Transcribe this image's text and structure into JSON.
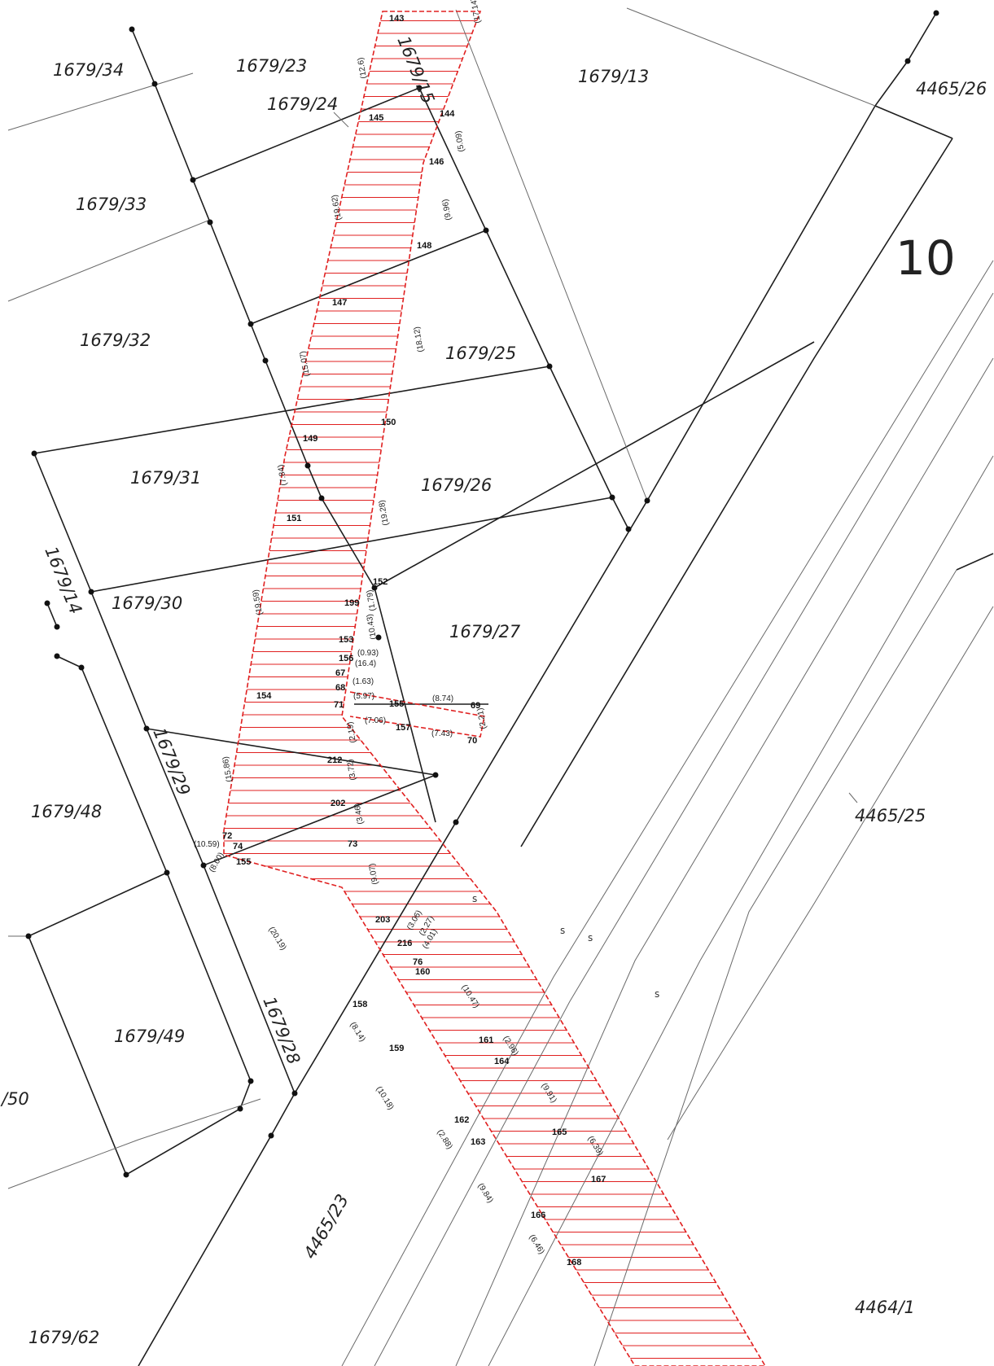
{
  "sheet_number": "10",
  "parcels": [
    {
      "id": "p-1679-34",
      "text": "1679/34"
    },
    {
      "id": "p-1679-23",
      "text": "1679/23"
    },
    {
      "id": "p-1679-24",
      "text": "1679/24"
    },
    {
      "id": "p-1679-15",
      "text": "1679/15"
    },
    {
      "id": "p-1679-13",
      "text": "1679/13"
    },
    {
      "id": "p-4465-26",
      "text": "4465/26"
    },
    {
      "id": "p-1679-33",
      "text": "1679/33"
    },
    {
      "id": "p-1679-32",
      "text": "1679/32"
    },
    {
      "id": "p-1679-25",
      "text": "1679/25"
    },
    {
      "id": "p-1679-31",
      "text": "1679/31"
    },
    {
      "id": "p-1679-26",
      "text": "1679/26"
    },
    {
      "id": "p-1679-14",
      "text": "1679/14"
    },
    {
      "id": "p-1679-30",
      "text": "1679/30"
    },
    {
      "id": "p-1679-27",
      "text": "1679/27"
    },
    {
      "id": "p-1679-29",
      "text": "1679/29"
    },
    {
      "id": "p-1679-48",
      "text": "1679/48"
    },
    {
      "id": "p-4465-25",
      "text": "4465/25"
    },
    {
      "id": "p-1679-49",
      "text": "1679/49"
    },
    {
      "id": "p-1679-28",
      "text": "1679/28"
    },
    {
      "id": "p-50",
      "text": "/50"
    },
    {
      "id": "p-4465-23",
      "text": "4465/23"
    },
    {
      "id": "p-4464-1",
      "text": "4464/1"
    },
    {
      "id": "p-1679-62",
      "text": "1679/62"
    }
  ],
  "points": [
    "143",
    "145",
    "144",
    "146",
    "148",
    "147",
    "150",
    "149",
    "151",
    "152",
    "199",
    "153",
    "156",
    "67",
    "68",
    "154",
    "71",
    "155",
    "157",
    "69",
    "70",
    "212",
    "202",
    "73",
    "72",
    "74",
    "155",
    "203",
    "216",
    "76",
    "160",
    "158",
    "159",
    "161",
    "164",
    "162",
    "163",
    "165",
    "167",
    "166",
    "168"
  ],
  "dimensions": [
    "(17.14)",
    "(12.6)",
    "(5.09)",
    "(9.96)",
    "(19.62)",
    "(18.12)",
    "(15.07)",
    "(7.84)",
    "(19.28)",
    "(19.59)",
    "(1.79)",
    "(10.43)",
    "(0.93)",
    "(16.4)",
    "(1.63)",
    "(5.97)",
    "(8.74)",
    "(7.06)",
    "(2.21)",
    "(7.43)",
    "(2.19)",
    "(3.72)",
    "(3.46)",
    "(15.86)",
    "(10.59)",
    "(8.00)",
    "(9.07)",
    "(20.19)",
    "(3.06)",
    "(2.27)",
    "(4.01)",
    "(10.47)",
    "(8.14)",
    "(2.96)",
    "(10.18)",
    "(9.91)",
    "(2.88)",
    "(6.39)",
    "(9.84)",
    "(6.46)"
  ],
  "pipe_marks": [
    "s",
    "s",
    "s",
    "s"
  ]
}
